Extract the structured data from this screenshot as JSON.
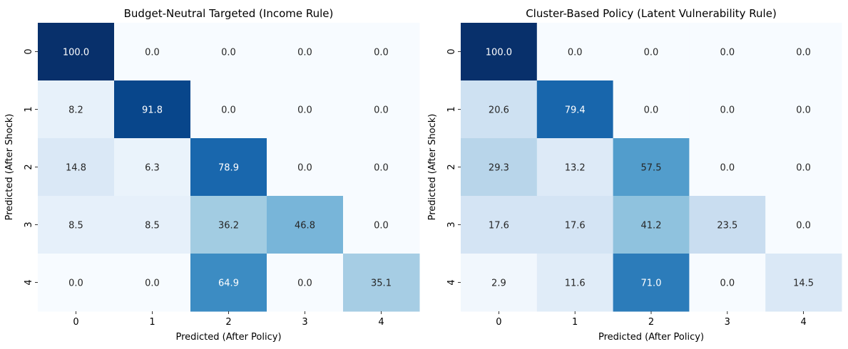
{
  "chart_data": [
    {
      "type": "heatmap",
      "title": "Budget-Neutral Targeted (Income Rule)",
      "xlabel": "Predicted (After Policy)",
      "ylabel": "Predicted (After Shock)",
      "x_categories": [
        "0",
        "1",
        "2",
        "3",
        "4"
      ],
      "y_categories": [
        "0",
        "1",
        "2",
        "3",
        "4"
      ],
      "values": [
        [
          100.0,
          0.0,
          0.0,
          0.0,
          0.0
        ],
        [
          8.2,
          91.8,
          0.0,
          0.0,
          0.0
        ],
        [
          14.8,
          6.3,
          78.9,
          0.0,
          0.0
        ],
        [
          8.5,
          8.5,
          36.2,
          46.8,
          0.0
        ],
        [
          0.0,
          0.0,
          64.9,
          0.0,
          35.1
        ]
      ],
      "value_format": "0.0",
      "colormap": "Blues",
      "vmin": 0,
      "vmax": 100,
      "colorbar": false
    },
    {
      "type": "heatmap",
      "title": "Cluster-Based Policy (Latent Vulnerability Rule)",
      "xlabel": "Predicted (After Policy)",
      "ylabel": "Predicted (After Shock)",
      "x_categories": [
        "0",
        "1",
        "2",
        "3",
        "4"
      ],
      "y_categories": [
        "0",
        "1",
        "2",
        "3",
        "4"
      ],
      "values": [
        [
          100.0,
          0.0,
          0.0,
          0.0,
          0.0
        ],
        [
          20.6,
          79.4,
          0.0,
          0.0,
          0.0
        ],
        [
          29.3,
          13.2,
          57.5,
          0.0,
          0.0
        ],
        [
          17.6,
          17.6,
          41.2,
          23.5,
          0.0
        ],
        [
          2.9,
          11.6,
          71.0,
          0.0,
          14.5
        ]
      ],
      "value_format": "0.0",
      "colormap": "Blues",
      "vmin": 0,
      "vmax": 100,
      "colorbar": false
    }
  ]
}
